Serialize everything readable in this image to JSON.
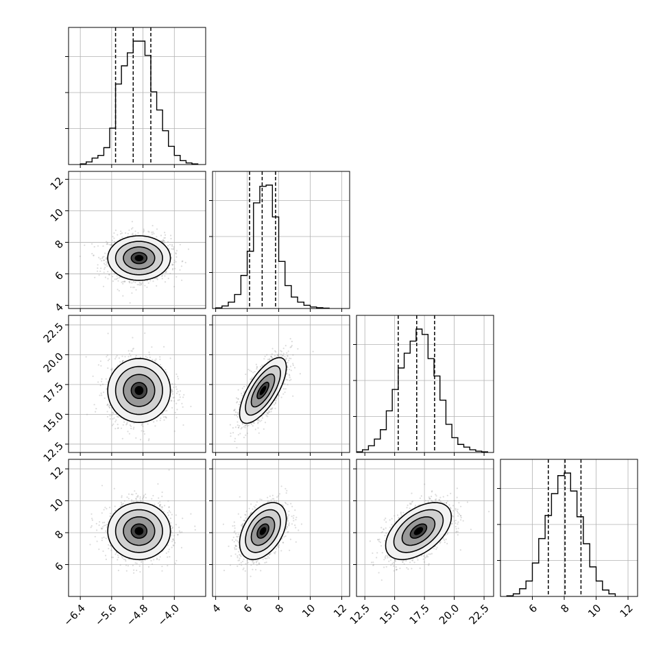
{
  "chart_data": {
    "type": "corner",
    "n_params": 4,
    "params": [
      {
        "index": 0,
        "range": [
          -6.7,
          -3.2
        ],
        "ticks": [
          -6.4,
          -5.6,
          -4.8,
          -4.0
        ],
        "tick_labels": [
          "−6.4",
          "−5.6",
          "−4.8",
          "−4.0"
        ],
        "quantiles": [
          -5.5,
          -5.05,
          -4.6
        ],
        "hist_bin_edges": [
          -6.4,
          -6.25,
          -6.1,
          -5.95,
          -5.8,
          -5.65,
          -5.5,
          -5.35,
          -5.2,
          -5.05,
          -4.9,
          -4.75,
          -4.6,
          -4.45,
          -4.3,
          -4.15,
          -4.0,
          -3.85,
          -3.7,
          -3.55,
          -3.4
        ],
        "hist_counts": [
          0.005,
          0.02,
          0.05,
          0.07,
          0.13,
          0.28,
          0.62,
          0.76,
          0.86,
          0.95,
          0.95,
          0.84,
          0.56,
          0.42,
          0.26,
          0.14,
          0.07,
          0.03,
          0.012,
          0.005
        ]
      },
      {
        "index": 1,
        "range": [
          3.8,
          12.5
        ],
        "ticks": [
          4,
          6,
          8,
          10,
          12
        ],
        "tick_labels": [
          "4",
          "6",
          "8",
          "10",
          "12"
        ],
        "quantiles": [
          6.15,
          6.95,
          7.8
        ],
        "hist_bin_edges": [
          4.0,
          4.4,
          4.8,
          5.2,
          5.6,
          6.0,
          6.4,
          6.8,
          7.2,
          7.6,
          8.0,
          8.4,
          8.8,
          9.2,
          9.6,
          10.0,
          10.4,
          10.8,
          11.2
        ],
        "hist_counts": [
          0.005,
          0.02,
          0.05,
          0.11,
          0.26,
          0.45,
          0.83,
          0.96,
          0.97,
          0.72,
          0.37,
          0.18,
          0.09,
          0.05,
          0.025,
          0.012,
          0.006,
          0.003
        ]
      },
      {
        "index": 2,
        "range": [
          11.8,
          23.3
        ],
        "ticks": [
          12.5,
          15.0,
          17.5,
          20.0,
          22.5
        ],
        "tick_labels": [
          "12.5",
          "15.0",
          "17.5",
          "20.0",
          "22.5"
        ],
        "quantiles": [
          15.3,
          16.85,
          18.35
        ],
        "hist_bin_edges": [
          11.8,
          12.3,
          12.8,
          13.3,
          13.8,
          14.3,
          14.8,
          15.3,
          15.8,
          16.3,
          16.8,
          17.3,
          17.8,
          18.3,
          18.8,
          19.3,
          19.8,
          20.3,
          20.8,
          21.3,
          21.8,
          22.3,
          22.8
        ],
        "hist_counts": [
          0.005,
          0.02,
          0.05,
          0.1,
          0.17,
          0.31,
          0.47,
          0.63,
          0.74,
          0.83,
          0.92,
          0.88,
          0.7,
          0.57,
          0.39,
          0.21,
          0.11,
          0.06,
          0.04,
          0.02,
          0.01,
          0.005
        ]
      },
      {
        "index": 3,
        "range": [
          4.0,
          12.6
        ],
        "ticks": [
          6,
          8,
          10,
          12
        ],
        "tick_labels": [
          "6",
          "8",
          "10",
          "12"
        ],
        "quantiles": [
          7.0,
          8.05,
          9.05
        ],
        "hist_bin_edges": [
          4.4,
          4.8,
          5.2,
          5.6,
          6.0,
          6.4,
          6.8,
          7.2,
          7.6,
          8.0,
          8.4,
          8.8,
          9.2,
          9.6,
          10.0,
          10.4,
          10.8,
          11.2
        ],
        "hist_counts": [
          0.005,
          0.02,
          0.06,
          0.12,
          0.26,
          0.45,
          0.63,
          0.8,
          0.94,
          0.96,
          0.82,
          0.62,
          0.41,
          0.23,
          0.12,
          0.05,
          0.02
        ]
      }
    ],
    "pairs": [
      {
        "x": 0,
        "y": 1,
        "mean": [
          -4.9,
          7.0
        ],
        "cov": [
          [
            0.16,
            0.0
          ],
          [
            0.0,
            0.5
          ]
        ]
      },
      {
        "x": 0,
        "y": 2,
        "mean": [
          -4.9,
          17.0
        ],
        "cov": [
          [
            0.16,
            0.0
          ],
          [
            0.0,
            1.8
          ]
        ]
      },
      {
        "x": 1,
        "y": 2,
        "mean": [
          7.0,
          17.0
        ],
        "cov": [
          [
            0.55,
            0.72
          ],
          [
            0.72,
            1.9
          ]
        ]
      },
      {
        "x": 0,
        "y": 3,
        "mean": [
          -4.9,
          8.1
        ],
        "cov": [
          [
            0.16,
            0.0
          ],
          [
            0.0,
            0.8
          ]
        ]
      },
      {
        "x": 1,
        "y": 3,
        "mean": [
          7.0,
          8.1
        ],
        "cov": [
          [
            0.55,
            0.28
          ],
          [
            0.28,
            0.8
          ]
        ]
      },
      {
        "x": 2,
        "y": 3,
        "mean": [
          17.0,
          8.1
        ],
        "cov": [
          [
            1.9,
            0.62
          ],
          [
            0.62,
            0.8
          ]
        ]
      }
    ],
    "contour_levels_sigma": [
      0.5,
      1.0,
      1.5,
      2.0
    ],
    "grid": true,
    "colors": {
      "line": "#000000",
      "grid": "#b0b0b0",
      "points": "#9a9a9a",
      "density_dark": "#000000",
      "background": "#ffffff"
    }
  }
}
